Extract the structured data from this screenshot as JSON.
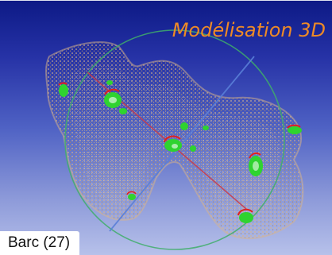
{
  "title": "Modélisation 3D",
  "caption": "Barc (27)",
  "colors": {
    "title": "#ee8a26",
    "background_top": "#0d1a86",
    "background_bottom": "#b7c1ea",
    "point_cloud": "#c9a37a",
    "sphere_ring": "#3fae6a",
    "axis_red": "#c93a4a",
    "axis_blue": "#5a7fd8",
    "target_green": "#2fd32f",
    "target_red": "#e02020"
  }
}
